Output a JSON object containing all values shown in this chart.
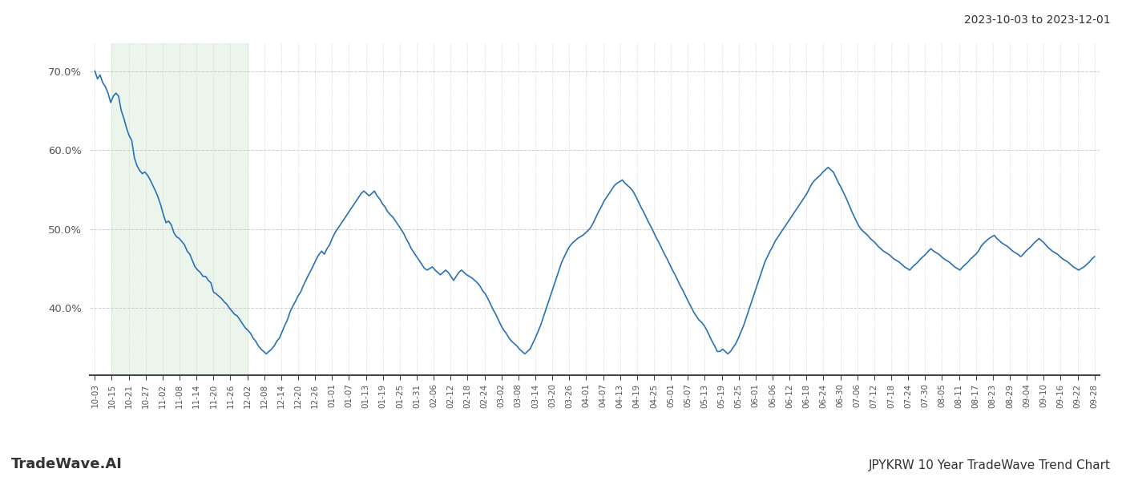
{
  "title_top_right": "2023-10-03 to 2023-12-01",
  "title_bottom_left": "TradeWave.AI",
  "title_bottom_right": "JPYKRW 10 Year TradeWave Trend Chart",
  "background_color": "#ffffff",
  "line_color": "#2970b5",
  "shade_color": "#d6ead6",
  "shade_alpha": 0.45,
  "ylim": [
    0.315,
    0.735
  ],
  "yticks": [
    0.4,
    0.5,
    0.6,
    0.7
  ],
  "ytick_labels": [
    "40.0%",
    "50.0%",
    "60.0%",
    "70.0%"
  ],
  "x_labels": [
    "10-03",
    "10-15",
    "10-21",
    "10-27",
    "11-02",
    "11-08",
    "11-14",
    "11-20",
    "11-26",
    "12-02",
    "12-08",
    "12-14",
    "12-20",
    "12-26",
    "01-01",
    "01-07",
    "01-13",
    "01-19",
    "01-25",
    "01-31",
    "02-06",
    "02-12",
    "02-18",
    "02-24",
    "03-02",
    "03-08",
    "03-14",
    "03-20",
    "03-26",
    "04-01",
    "04-07",
    "04-13",
    "04-19",
    "04-25",
    "05-01",
    "05-07",
    "05-13",
    "05-19",
    "05-25",
    "06-01",
    "06-06",
    "06-12",
    "06-18",
    "06-24",
    "06-30",
    "07-06",
    "07-12",
    "07-18",
    "07-24",
    "07-30",
    "08-05",
    "08-11",
    "08-17",
    "08-23",
    "08-29",
    "09-04",
    "09-10",
    "09-16",
    "09-22",
    "09-28"
  ],
  "shade_x_start_label": "10-15",
  "shade_x_end_label": "12-02",
  "values": [
    0.7,
    0.69,
    0.695,
    0.685,
    0.68,
    0.672,
    0.66,
    0.668,
    0.672,
    0.668,
    0.65,
    0.64,
    0.628,
    0.618,
    0.612,
    0.59,
    0.58,
    0.574,
    0.57,
    0.572,
    0.568,
    0.562,
    0.555,
    0.548,
    0.54,
    0.53,
    0.518,
    0.508,
    0.51,
    0.505,
    0.495,
    0.49,
    0.488,
    0.484,
    0.48,
    0.472,
    0.468,
    0.46,
    0.452,
    0.448,
    0.445,
    0.44,
    0.44,
    0.435,
    0.432,
    0.42,
    0.418,
    0.415,
    0.412,
    0.408,
    0.405,
    0.4,
    0.396,
    0.392,
    0.39,
    0.385,
    0.38,
    0.375,
    0.372,
    0.368,
    0.362,
    0.358,
    0.352,
    0.348,
    0.345,
    0.342,
    0.345,
    0.348,
    0.352,
    0.358,
    0.362,
    0.37,
    0.378,
    0.385,
    0.395,
    0.402,
    0.408,
    0.415,
    0.42,
    0.428,
    0.435,
    0.442,
    0.448,
    0.455,
    0.462,
    0.468,
    0.472,
    0.468,
    0.475,
    0.48,
    0.488,
    0.495,
    0.5,
    0.505,
    0.51,
    0.515,
    0.52,
    0.525,
    0.53,
    0.535,
    0.54,
    0.545,
    0.548,
    0.545,
    0.542,
    0.545,
    0.548,
    0.542,
    0.538,
    0.532,
    0.528,
    0.522,
    0.518,
    0.515,
    0.51,
    0.505,
    0.5,
    0.495,
    0.488,
    0.482,
    0.475,
    0.47,
    0.465,
    0.46,
    0.455,
    0.45,
    0.448,
    0.45,
    0.452,
    0.448,
    0.445,
    0.442,
    0.445,
    0.448,
    0.445,
    0.44,
    0.435,
    0.44,
    0.445,
    0.448,
    0.445,
    0.442,
    0.44,
    0.438,
    0.435,
    0.432,
    0.428,
    0.422,
    0.418,
    0.412,
    0.405,
    0.398,
    0.392,
    0.385,
    0.378,
    0.372,
    0.368,
    0.362,
    0.358,
    0.355,
    0.352,
    0.348,
    0.345,
    0.342,
    0.345,
    0.348,
    0.355,
    0.362,
    0.37,
    0.378,
    0.388,
    0.398,
    0.408,
    0.418,
    0.428,
    0.438,
    0.448,
    0.458,
    0.465,
    0.472,
    0.478,
    0.482,
    0.485,
    0.488,
    0.49,
    0.492,
    0.495,
    0.498,
    0.502,
    0.508,
    0.515,
    0.522,
    0.528,
    0.535,
    0.54,
    0.545,
    0.55,
    0.555,
    0.558,
    0.56,
    0.562,
    0.558,
    0.555,
    0.552,
    0.548,
    0.542,
    0.535,
    0.528,
    0.522,
    0.515,
    0.508,
    0.502,
    0.495,
    0.488,
    0.482,
    0.475,
    0.468,
    0.462,
    0.455,
    0.448,
    0.442,
    0.435,
    0.428,
    0.422,
    0.415,
    0.408,
    0.402,
    0.395,
    0.39,
    0.385,
    0.382,
    0.378,
    0.372,
    0.365,
    0.358,
    0.352,
    0.345,
    0.345,
    0.348,
    0.345,
    0.342,
    0.345,
    0.35,
    0.355,
    0.362,
    0.37,
    0.378,
    0.388,
    0.398,
    0.408,
    0.418,
    0.428,
    0.438,
    0.448,
    0.458,
    0.465,
    0.472,
    0.478,
    0.485,
    0.49,
    0.495,
    0.5,
    0.505,
    0.51,
    0.515,
    0.52,
    0.525,
    0.53,
    0.535,
    0.54,
    0.545,
    0.552,
    0.558,
    0.562,
    0.565,
    0.568,
    0.572,
    0.575,
    0.578,
    0.575,
    0.572,
    0.565,
    0.558,
    0.552,
    0.545,
    0.538,
    0.53,
    0.522,
    0.515,
    0.508,
    0.502,
    0.498,
    0.495,
    0.492,
    0.488,
    0.485,
    0.482,
    0.478,
    0.475,
    0.472,
    0.47,
    0.468,
    0.465,
    0.462,
    0.46,
    0.458,
    0.455,
    0.452,
    0.45,
    0.448,
    0.452,
    0.455,
    0.458,
    0.462,
    0.465,
    0.468,
    0.472,
    0.475,
    0.472,
    0.47,
    0.468,
    0.465,
    0.462,
    0.46,
    0.458,
    0.455,
    0.452,
    0.45,
    0.448,
    0.452,
    0.455,
    0.458,
    0.462,
    0.465,
    0.468,
    0.472,
    0.478,
    0.482,
    0.485,
    0.488,
    0.49,
    0.492,
    0.488,
    0.485,
    0.482,
    0.48,
    0.478,
    0.475,
    0.472,
    0.47,
    0.468,
    0.465,
    0.468,
    0.472,
    0.475,
    0.478,
    0.482,
    0.485,
    0.488,
    0.485,
    0.482,
    0.478,
    0.475,
    0.472,
    0.47,
    0.468,
    0.465,
    0.462,
    0.46,
    0.458,
    0.455,
    0.452,
    0.45,
    0.448,
    0.45,
    0.452,
    0.455,
    0.458,
    0.462,
    0.465
  ]
}
